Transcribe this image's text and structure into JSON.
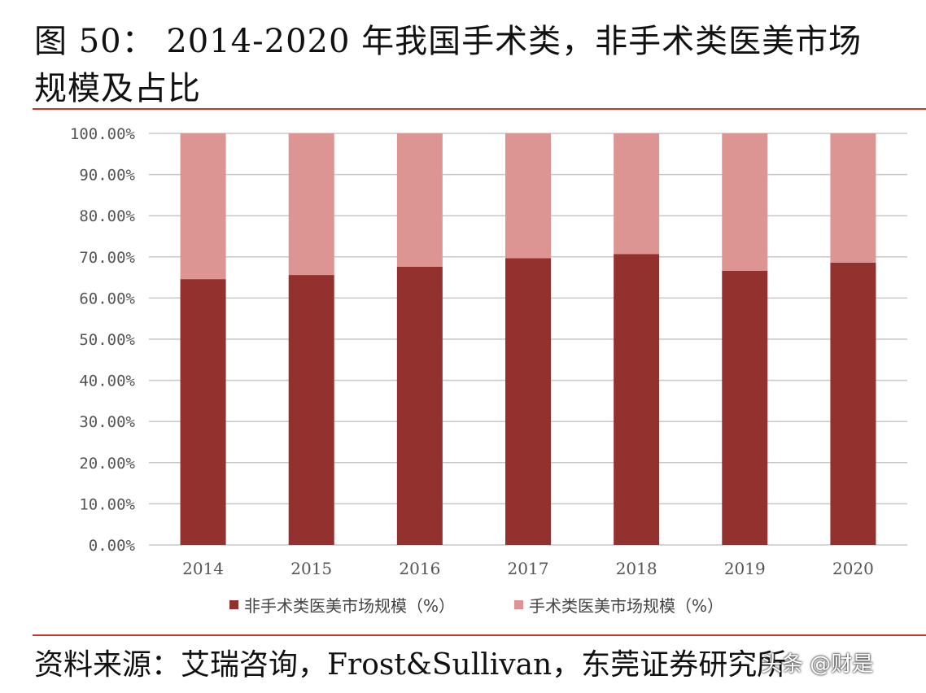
{
  "title_line1": "图 50：  2014-2020 年我国手术类，非手术类医美市场",
  "title_line2": "规模及占比",
  "source": "资料来源：艾瑞咨询，Frost&Sullivan，东莞证券研究所",
  "watermark": "头条 @财是",
  "chart_data": {
    "type": "bar",
    "stacked": true,
    "categories": [
      "2014",
      "2015",
      "2016",
      "2017",
      "2018",
      "2019",
      "2020"
    ],
    "series": [
      {
        "name": "非手术类医美市场规模（%）",
        "color": "#93312e",
        "values": [
          64.6,
          65.6,
          67.6,
          69.7,
          70.7,
          66.6,
          68.6
        ]
      },
      {
        "name": "手术类医美市场规模（%）",
        "color": "#dc9593",
        "values": [
          35.4,
          34.4,
          32.4,
          30.3,
          29.3,
          33.4,
          31.4
        ]
      }
    ],
    "yticks": [
      "0.00%",
      "10.00%",
      "20.00%",
      "30.00%",
      "40.00%",
      "50.00%",
      "60.00%",
      "70.00%",
      "80.00%",
      "90.00%",
      "100.00%"
    ],
    "ylim": [
      0,
      100
    ],
    "grid": true,
    "legend": "bottom"
  }
}
